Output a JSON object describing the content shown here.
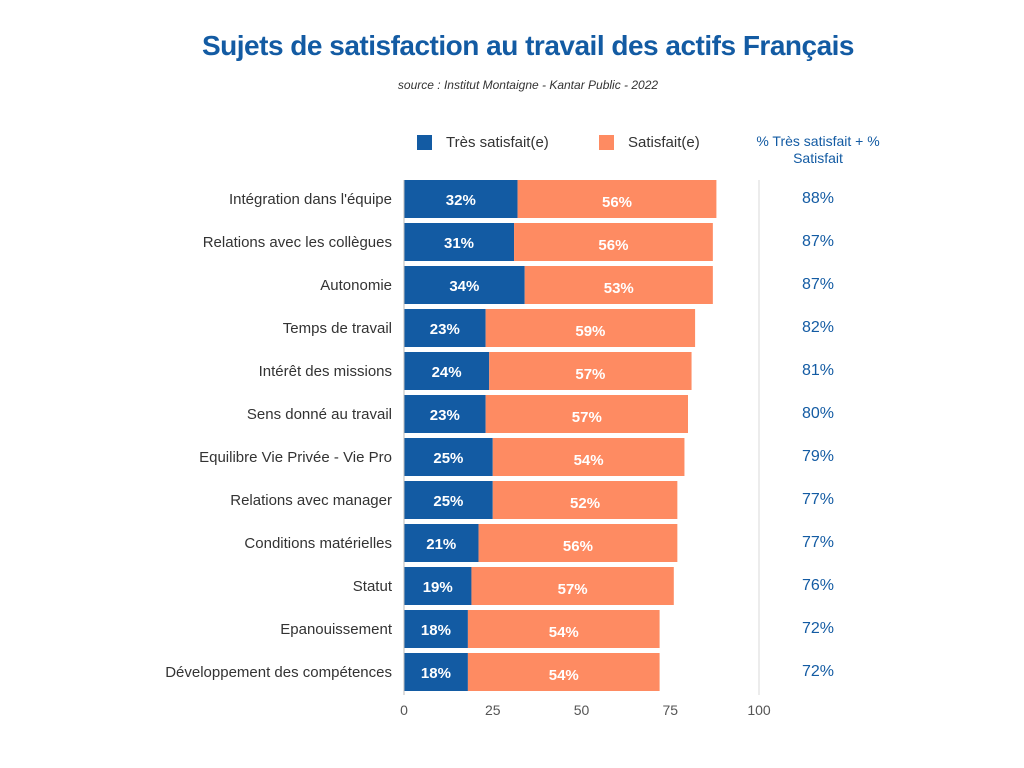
{
  "title": "Sujets de satisfaction au travail des actifs Français",
  "subtitle": "source : Institut Montaigne - Kantar Public - 2022",
  "total_header": "% Très satisfait + % Satisfait",
  "colors": {
    "title": "#135ba3",
    "tres_satisfait": "#135ba3",
    "satisfait": "#fe8b62"
  },
  "chart_data": {
    "type": "bar",
    "orientation": "horizontal",
    "stacked": true,
    "categories": [
      "Intégration dans l'équipe",
      "Relations avec les collègues",
      "Autonomie",
      "Temps de travail",
      "Intérêt des missions",
      "Sens donné au travail",
      "Equilibre Vie Privée - Vie Pro",
      "Relations avec manager",
      "Conditions matérielles",
      "Statut",
      "Epanouissement",
      "Développement des compétences"
    ],
    "series": [
      {
        "name": "Très satisfait(e)",
        "values": [
          32,
          31,
          34,
          23,
          24,
          23,
          25,
          25,
          21,
          19,
          18,
          18
        ]
      },
      {
        "name": "Satisfait(e)",
        "values": [
          56,
          56,
          53,
          59,
          57,
          57,
          54,
          52,
          56,
          57,
          54,
          54
        ]
      }
    ],
    "totals": [
      88,
      87,
      87,
      82,
      81,
      80,
      79,
      77,
      77,
      76,
      72,
      72
    ],
    "xlim": [
      0,
      100
    ],
    "xticks": [
      0,
      25,
      50,
      75,
      100
    ],
    "legend_position": "top",
    "grid": false
  }
}
